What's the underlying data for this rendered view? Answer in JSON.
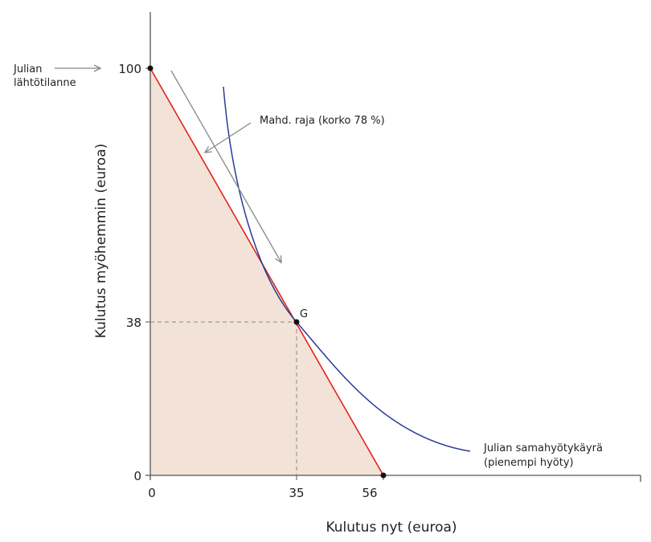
{
  "colors": {
    "budget_line": "#e0261c",
    "indifference_curve": "#2b3a9a",
    "feasible_fill": "#f3e2d7",
    "axis": "#555555",
    "annotation": "#888888"
  },
  "axes": {
    "x_title": "Kulutus nyt (euroa)",
    "y_title": "Kulutus myöhemmin (euroa)",
    "x_ticks": [
      "0",
      "35",
      "56"
    ],
    "y_ticks": [
      "100",
      "38",
      "0"
    ]
  },
  "labels": {
    "start_line1": "Julian",
    "start_line2": "lähtötilanne",
    "frontier": "Mahd. raja (korko 78 %)",
    "point_g": "G",
    "curve_line1": "Julian samahyötykäyrä",
    "curve_line2": "(pienempi hyöty)"
  }
}
